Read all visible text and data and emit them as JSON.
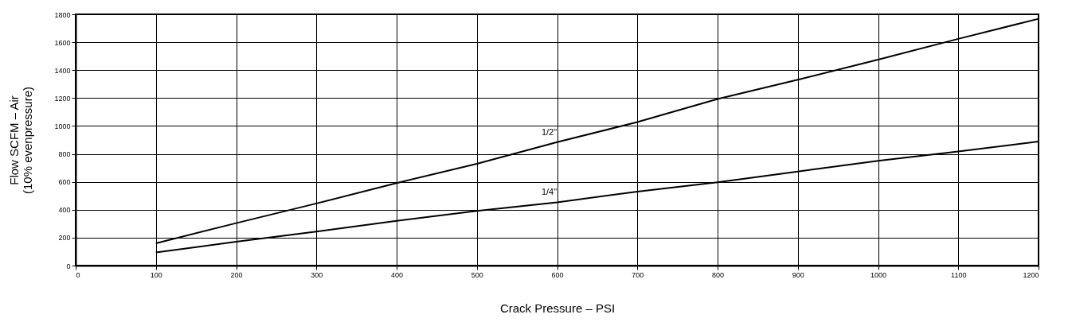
{
  "chart_data": {
    "type": "line",
    "xlabel": "Crack Pressure – PSI",
    "ylabel": "Flow SCFM – Air\n(10% evenpressure)",
    "x": [
      100,
      200,
      300,
      400,
      500,
      600,
      700,
      800,
      900,
      1000,
      1100,
      1200
    ],
    "series": [
      {
        "name": "1/2\"",
        "color": "#000000",
        "values": [
          160,
          304,
          445,
          591,
          729,
          884,
          1028,
          1193,
          1331,
          1475,
          1624,
          1768
        ]
      },
      {
        "name": "1/4\"",
        "color": "#000000",
        "values": [
          94,
          171,
          243,
          320,
          392,
          453,
          530,
          597,
          674,
          751,
          818,
          889
        ]
      }
    ],
    "xlim": [
      0,
      1200
    ],
    "xticks": [
      0,
      100,
      200,
      300,
      400,
      500,
      600,
      700,
      800,
      900,
      1000,
      1100,
      1200
    ],
    "ylim": [
      0,
      1800
    ],
    "yticks": [
      0,
      200,
      400,
      600,
      800,
      1000,
      1200,
      1400,
      1600,
      1800
    ],
    "grid": true,
    "line_style": "solid",
    "marker": "none"
  }
}
